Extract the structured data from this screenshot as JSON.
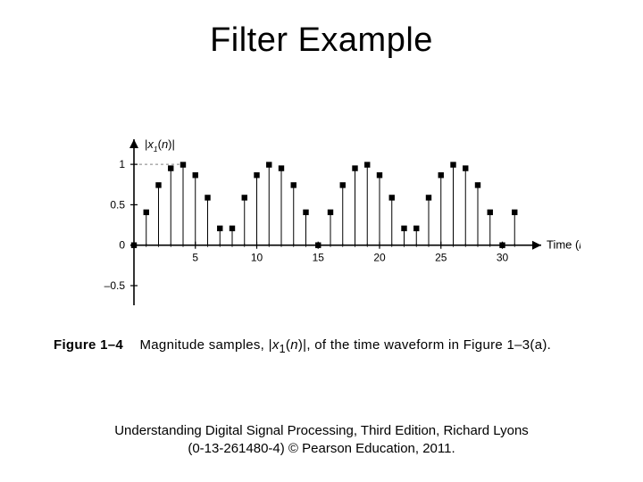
{
  "title": "Filter Example",
  "chart": {
    "type": "stem",
    "y_label": "|x₁(n)|",
    "x_label": "Time (n)",
    "xlim": [
      0,
      32
    ],
    "ylim": [
      -0.5,
      1.2
    ],
    "x_ticks": [
      5,
      10,
      15,
      20,
      25,
      30
    ],
    "y_ticks": [
      -0.5,
      0,
      0.5,
      1
    ],
    "y_tick_labels": [
      "–0.5",
      "0",
      "0.5",
      "1"
    ],
    "background_color": "#ffffff",
    "axis_color": "#000000",
    "grid_dash_color": "#808080",
    "stem_color": "#000000",
    "marker_color": "#000000",
    "marker_size": 3.2,
    "label_fontsize": 13,
    "tick_fontsize": 12,
    "period": 15,
    "n_values": [
      0,
      1,
      2,
      3,
      4,
      5,
      6,
      7,
      8,
      9,
      10,
      11,
      12,
      13,
      14,
      15,
      16,
      17,
      18,
      19,
      20,
      21,
      22,
      23,
      24,
      25,
      26,
      27,
      28,
      29,
      30,
      31
    ],
    "y_values": [
      0.0,
      0.407,
      0.743,
      0.951,
      0.995,
      0.866,
      0.588,
      0.208,
      0.208,
      0.588,
      0.866,
      0.995,
      0.951,
      0.743,
      0.407,
      0.0,
      0.407,
      0.743,
      0.951,
      0.995,
      0.866,
      0.588,
      0.208,
      0.208,
      0.588,
      0.866,
      0.995,
      0.951,
      0.743,
      0.407,
      0.0,
      0.407
    ],
    "dashed_ref_at": 1.0
  },
  "caption": {
    "label": "Figure 1–4",
    "text_pre": "Magnitude samples, |",
    "text_sub": "x₁(n)",
    "text_post": "|, of the time waveform in Figure 1–3(a)."
  },
  "footnote_line1": "Understanding Digital Signal Processing, Third Edition, Richard Lyons",
  "footnote_line2": "(0-13-261480-4) © Pearson Education, 2011."
}
